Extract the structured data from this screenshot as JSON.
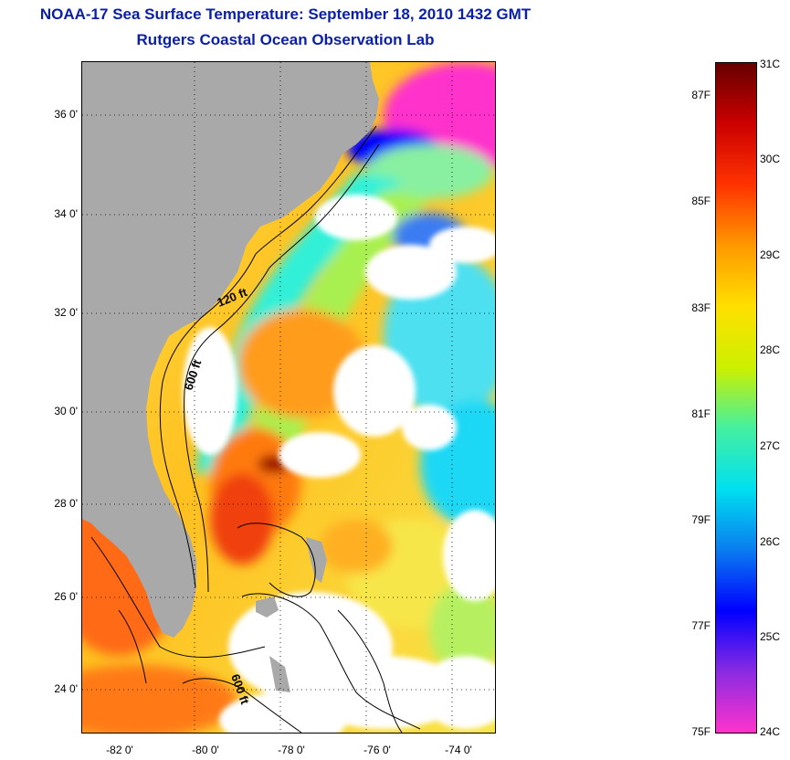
{
  "header": {
    "title": "NOAA-17 Sea Surface Temperature:  September 18, 2010 1432 GMT",
    "subtitle": "Rutgers Coastal Ocean Observation Lab"
  },
  "map": {
    "latitude_labels": [
      "36 0'",
      "34 0'",
      "32 0'",
      "30 0'",
      "28 0'",
      "26 0'",
      "24 0'"
    ],
    "longitude_labels": [
      "-82 0'",
      "-80 0'",
      "-78 0'",
      "-76 0'",
      "-74 0'"
    ],
    "contour_labels": [
      "120 ft",
      "600 ft",
      "600 ft"
    ],
    "colors": {
      "land": "#a9a9a9",
      "cloud": "#ffffff"
    }
  },
  "colorbar": {
    "celsius_labels": [
      "31C",
      "30C",
      "29C",
      "28C",
      "27C",
      "26C",
      "25C",
      "24C"
    ],
    "fahrenheit_labels": [
      "87F",
      "85F",
      "83F",
      "81F",
      "79F",
      "77F",
      "75F"
    ],
    "range_celsius": [
      24,
      31
    ],
    "colors": [
      "#ff33cc",
      "#8a2be2",
      "#0000ff",
      "#0a7df0",
      "#00e0f0",
      "#44f0a0",
      "#ccf000",
      "#ffe000",
      "#ff9900",
      "#ff3300",
      "#cc0000",
      "#660000"
    ]
  }
}
